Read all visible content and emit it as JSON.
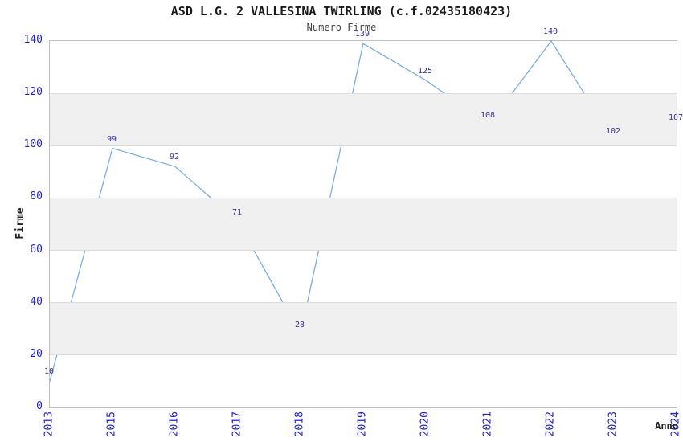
{
  "chart_data": {
    "type": "line",
    "title": "ASD L.G. 2 VALLESINA TWIRLING (c.f.02435180423)",
    "subtitle": "Numero Firme",
    "xlabel": "Anno",
    "ylabel": "Firme",
    "categories": [
      "2013",
      "2015",
      "2016",
      "2017",
      "2018",
      "2019",
      "2020",
      "2021",
      "2022",
      "2023",
      "2024"
    ],
    "values": [
      10,
      99,
      92,
      71,
      28,
      139,
      125,
      108,
      140,
      102,
      107
    ],
    "ylim": [
      0,
      140
    ],
    "ytick_step": 20,
    "yticks": [
      0,
      20,
      40,
      60,
      80,
      100,
      120,
      140
    ],
    "grid": true,
    "legend": "none",
    "banded_background": true,
    "data_labels_visible": true,
    "colors": {
      "line": "#7aade3",
      "data_label": "#333399",
      "tick_label": "#2323cc",
      "band": "#f0f0f0",
      "gridline": "#dcdcdc",
      "plot_border": "#c0c0c0",
      "title": "#1a1a1a",
      "subtitle": "#444444",
      "axis_label": "#222222"
    }
  }
}
